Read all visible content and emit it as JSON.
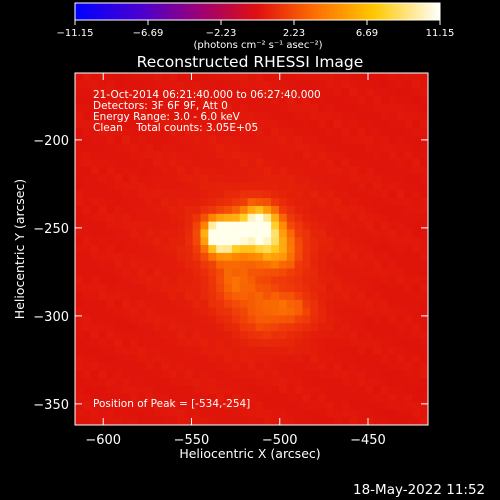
{
  "chart_data": {
    "type": "heatmap",
    "title": "Reconstructed RHESSI Image",
    "xlabel": "Heliocentric X (arcsec)",
    "ylabel": "Heliocentric Y (arcsec)",
    "xlim": [
      -616,
      -416
    ],
    "ylim": [
      -362,
      -162
    ],
    "xticks": [
      -600,
      -550,
      -500,
      -450
    ],
    "yticks": [
      -200,
      -250,
      -300,
      -350
    ],
    "xtick_labels": [
      "−600",
      "−550",
      "−500",
      "−450"
    ],
    "ytick_labels": [
      "−200",
      "−250",
      "−300",
      "−350"
    ],
    "colorbar": {
      "unit_label": "(photons cm⁻² s⁻¹ asec⁻²)",
      "range": [
        -11.15,
        11.15
      ],
      "tick_labels": [
        "−11.15",
        "−6.69",
        "−2.23",
        "2.23",
        "6.69",
        "11.15"
      ],
      "colors": [
        "#0000ff",
        "#5500cc",
        "#a00080",
        "#e01010",
        "#ff7a00",
        "#ffd000",
        "#ffffff"
      ]
    },
    "annotations": [
      "21-Oct-2014 06:21:40.000 to 06:27:40.000",
      "Detectors: 3F 6F 9F, Att 0",
      "Energy Range: 3.0 - 6.0 keV",
      "Clean    Total counts: 3.05E+05"
    ],
    "peak_label": "Position of Peak = [-534,-254]",
    "peak_position": [
      -534,
      -254
    ],
    "sources": [
      {
        "x": -534,
        "y": -254,
        "sigma": 8,
        "amp": 1.0
      },
      {
        "x": -512,
        "y": -248,
        "sigma": 9,
        "amp": 0.85
      },
      {
        "x": -499,
        "y": -262,
        "sigma": 10,
        "amp": 0.45
      },
      {
        "x": -528,
        "y": -285,
        "sigma": 8,
        "amp": 0.25
      },
      {
        "x": -510,
        "y": -298,
        "sigma": 11,
        "amp": 0.35
      },
      {
        "x": -491,
        "y": -296,
        "sigma": 9,
        "amp": 0.3
      },
      {
        "x": -522,
        "y": -265,
        "sigma": 14,
        "amp": 0.28
      }
    ]
  },
  "footer": {
    "timestamp": "18-May-2022 11:52"
  }
}
